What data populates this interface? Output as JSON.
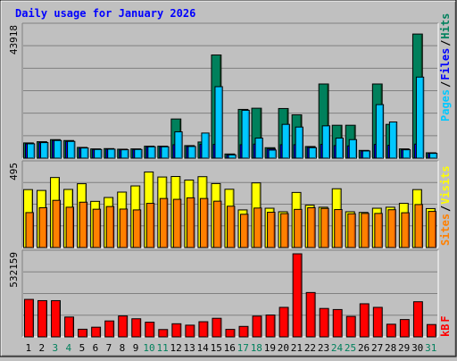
{
  "chart_data": {
    "type": "bar",
    "title": "Daily usage for January 2026",
    "categories": [
      "1",
      "2",
      "3",
      "4",
      "5",
      "6",
      "7",
      "8",
      "9",
      "10",
      "11",
      "12",
      "13",
      "14",
      "15",
      "16",
      "17",
      "18",
      "19",
      "20",
      "21",
      "22",
      "23",
      "24",
      "25",
      "26",
      "27",
      "28",
      "29",
      "30",
      "31"
    ],
    "weekend_days": [
      "3",
      "4",
      "10",
      "11",
      "17",
      "18",
      "24",
      "25",
      "31"
    ],
    "panels": [
      {
        "id": "hits_files_pages",
        "max_label": "43918",
        "ylim": [
          0,
          43918
        ],
        "legend": [
          "Pages",
          "/",
          "Files",
          "/",
          "Hits"
        ],
        "series": [
          {
            "name": "Hits",
            "color": "#00805c",
            "values": [
              5100,
              5500,
              6200,
              5900,
              3600,
              3100,
              3200,
              3000,
              3100,
              4000,
              4000,
              13100,
              4200,
              5400,
              34500,
              1400,
              16300,
              16700,
              3500,
              16600,
              14500,
              3900,
              24800,
              11000,
              11000,
              2600,
              24800,
              11300,
              3100,
              41500,
              1800
            ]
          },
          {
            "name": "Files",
            "color": "#0000ff",
            "values": [
              4800,
              5200,
              5900,
              5600,
              3400,
              2900,
              3000,
              2800,
              2900,
              3800,
              3800,
              4500,
              3900,
              4600,
              4600,
              1100,
              4500,
              4700,
              3100,
              4500,
              4500,
              3600,
              4600,
              4200,
              4100,
              2400,
              4600,
              4300,
              2800,
              4700,
              1600
            ]
          },
          {
            "name": "Pages",
            "color": "#00c8ff",
            "values": [
              4800,
              5200,
              5900,
              5600,
              3400,
              2900,
              3000,
              2800,
              2900,
              3800,
              3800,
              8800,
              3900,
              8400,
              23900,
              1100,
              16000,
              6700,
              2700,
              11300,
              10400,
              3500,
              10800,
              6700,
              6200,
              2400,
              17900,
              12100,
              2800,
              27100,
              1600
            ]
          }
        ]
      },
      {
        "id": "visits_sites",
        "max_label": "495",
        "ylim": [
          0,
          495
        ],
        "legend": [
          "Sites",
          "/",
          "Visits"
        ],
        "series": [
          {
            "name": "Visits",
            "color": "#ffff00",
            "values": [
              345,
              340,
              417,
              346,
              380,
              275,
              298,
              330,
              367,
              450,
              420,
              423,
              402,
              422,
              381,
              347,
              224,
              385,
              234,
              213,
              328,
              252,
              240,
              350,
              213,
              209,
              234,
              240,
              263,
              345,
              232
            ]
          },
          {
            "name": "Sites",
            "color": "#ff8000",
            "values": [
              208,
              237,
              281,
              240,
              270,
              228,
              244,
              229,
              224,
              263,
              292,
              287,
              296,
              292,
              276,
              246,
              198,
              235,
              210,
              202,
              227,
              237,
              233,
              226,
              201,
              203,
              203,
              225,
              207,
              256,
              215
            ]
          }
        ]
      },
      {
        "id": "kbytes",
        "max_label": "532159",
        "ylim": [
          0,
          532159
        ],
        "legend": [
          "kB",
          "F"
        ],
        "series": [
          {
            "name": "kB F",
            "color": "#ff0000",
            "values": [
              240000,
              232000,
              232000,
              127000,
              49000,
              62000,
              102000,
              134000,
              116000,
              94000,
              47000,
              84000,
              75000,
              97000,
              119000,
              48000,
              67000,
              133000,
              140000,
              189000,
              532000,
              284000,
              182000,
              175000,
              131000,
              212000,
              189000,
              81000,
              111000,
              225000,
              79000
            ]
          }
        ]
      }
    ]
  }
}
